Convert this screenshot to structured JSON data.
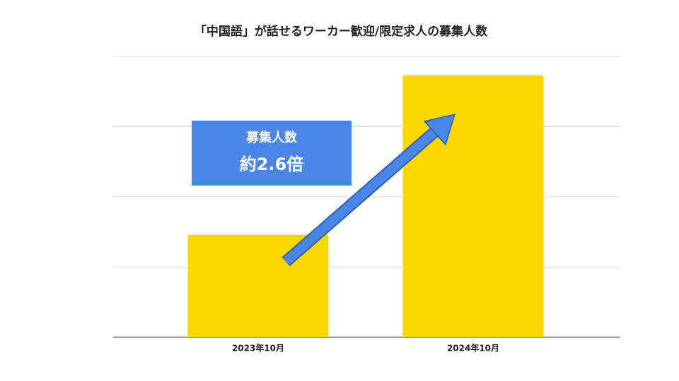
{
  "chart_data": {
    "type": "bar",
    "title": "「中国語」が話せるワーカー歓迎/限定求人の募集人数",
    "categories": [
      "2023年10月",
      "2024年10月"
    ],
    "values": [
      1.46,
      3.73
    ],
    "color": "#fdd700",
    "ylim": [
      0,
      4
    ],
    "yticks": [
      0,
      1,
      2,
      3,
      4
    ],
    "grid": true,
    "annotation": {
      "lines": [
        "募集人数",
        "約2.6倍"
      ],
      "color": "#4a86e8"
    }
  }
}
